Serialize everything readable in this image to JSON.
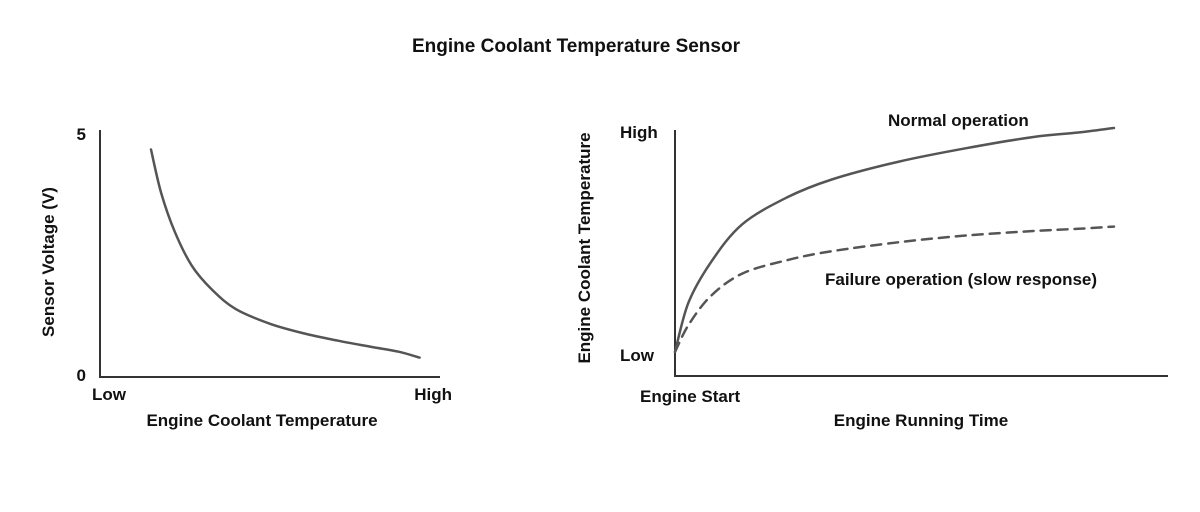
{
  "title": "Engine Coolant Temperature Sensor",
  "colors": {
    "curve": "#555555",
    "axis": "#333333",
    "text": "#111111"
  },
  "chart_data": [
    {
      "type": "line",
      "xlabel": "Engine Coolant Temperature",
      "ylabel": "Sensor Voltage (V)",
      "x_ticks": [
        "Low",
        "High"
      ],
      "y_ticks": [
        "0",
        "5"
      ],
      "xlim": [
        0,
        1
      ],
      "ylim": [
        0,
        5
      ],
      "grid": false,
      "legend": "none",
      "series": [
        {
          "style": "solid",
          "x": [
            0.15,
            0.18,
            0.22,
            0.27,
            0.33,
            0.4,
            0.5,
            0.6,
            0.7,
            0.8,
            0.88,
            0.94
          ],
          "y": [
            4.7,
            3.8,
            3.0,
            2.3,
            1.8,
            1.4,
            1.1,
            0.9,
            0.75,
            0.62,
            0.52,
            0.4
          ]
        }
      ]
    },
    {
      "type": "line",
      "xlabel": "Engine Running Time",
      "ylabel": "Engine Coolant Temperature",
      "x_ticks": [
        "Engine Start"
      ],
      "y_ticks": [
        "Low",
        "High"
      ],
      "xlim": [
        0,
        1
      ],
      "ylim": [
        0,
        1
      ],
      "grid": false,
      "legend": "none",
      "series": [
        {
          "name": "Normal operation",
          "style": "solid",
          "x": [
            0.0,
            0.03,
            0.08,
            0.15,
            0.25,
            0.35,
            0.5,
            0.65,
            0.8,
            0.9,
            0.98
          ],
          "y": [
            0.0,
            0.22,
            0.4,
            0.57,
            0.69,
            0.77,
            0.85,
            0.91,
            0.96,
            0.98,
            1.0
          ]
        },
        {
          "name": "Failure operation (slow response)",
          "style": "dashed",
          "x": [
            0.0,
            0.03,
            0.08,
            0.15,
            0.25,
            0.35,
            0.5,
            0.65,
            0.8,
            0.9,
            0.98
          ],
          "y": [
            0.0,
            0.12,
            0.25,
            0.35,
            0.41,
            0.45,
            0.49,
            0.52,
            0.54,
            0.55,
            0.56
          ]
        }
      ]
    }
  ]
}
